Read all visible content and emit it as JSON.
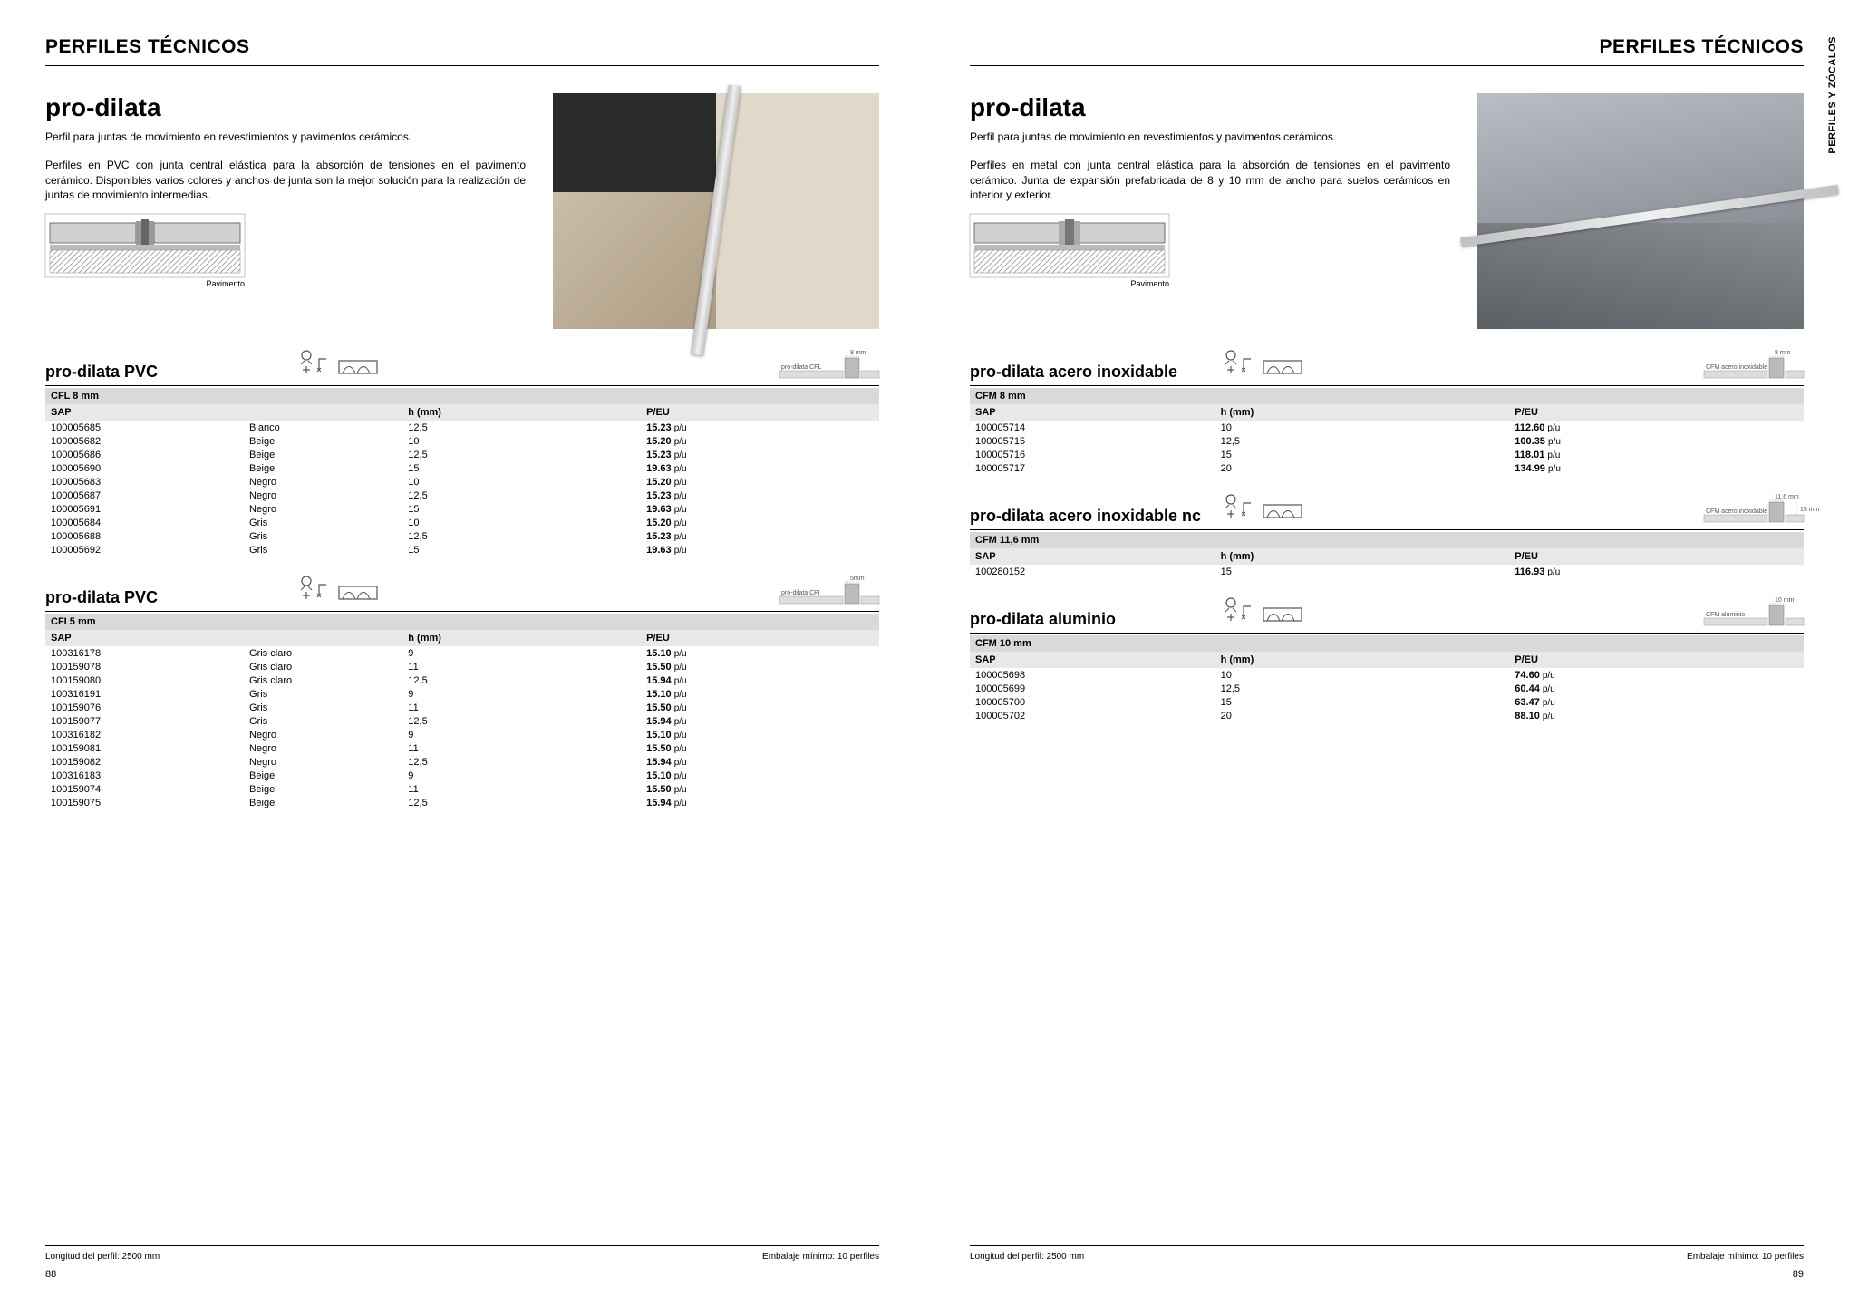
{
  "side_tab": "PERFILES Y ZÓCALOS",
  "header": {
    "left": "PERFILES TÉCNICOS",
    "right": "PERFILES TÉCNICOS"
  },
  "left": {
    "title": "pro-dilata",
    "subtitle": "Perfil para juntas de movimiento en revestimientos y pavimentos cerámicos.",
    "desc": "Perfiles en PVC con junta central elástica para la absorción de tensiones en el pavimento cerámico. Disponibles varios colores y anchos de junta son la mejor solución para la realización de juntas de movimiento intermedias.",
    "diagram_caption": "Pavimento",
    "sections": [
      {
        "title": "pro-dilata PVC",
        "sub": "CFL 8 mm",
        "diag_label": "pro-dilata CFL",
        "diag_dim": "8 mm",
        "cols": [
          "SAP",
          "",
          "h (mm)",
          "P/EU"
        ],
        "rows": [
          [
            "100005685",
            "Blanco",
            "12,5",
            "15.23"
          ],
          [
            "100005682",
            "Beige",
            "10",
            "15.20"
          ],
          [
            "100005686",
            "Beige",
            "12,5",
            "15.23"
          ],
          [
            "100005690",
            "Beige",
            "15",
            "19.63"
          ],
          [
            "100005683",
            "Negro",
            "10",
            "15.20"
          ],
          [
            "100005687",
            "Negro",
            "12,5",
            "15.23"
          ],
          [
            "100005691",
            "Negro",
            "15",
            "19.63"
          ],
          [
            "100005684",
            "Gris",
            "10",
            "15.20"
          ],
          [
            "100005688",
            "Gris",
            "12,5",
            "15.23"
          ],
          [
            "100005692",
            "Gris",
            "15",
            "19.63"
          ]
        ]
      },
      {
        "title": "pro-dilata PVC",
        "sub": "CFI 5 mm",
        "diag_label": "pro-dilata CFI",
        "diag_dim": "5mm",
        "cols": [
          "SAP",
          "",
          "h (mm)",
          "P/EU"
        ],
        "rows": [
          [
            "100316178",
            "Gris claro",
            "9",
            "15.10"
          ],
          [
            "100159078",
            "Gris claro",
            "11",
            "15.50"
          ],
          [
            "100159080",
            "Gris claro",
            "12,5",
            "15.94"
          ],
          [
            "100316191",
            "Gris",
            "9",
            "15.10"
          ],
          [
            "100159076",
            "Gris",
            "11",
            "15.50"
          ],
          [
            "100159077",
            "Gris",
            "12,5",
            "15.94"
          ],
          [
            "100316182",
            "Negro",
            "9",
            "15.10"
          ],
          [
            "100159081",
            "Negro",
            "11",
            "15.50"
          ],
          [
            "100159082",
            "Negro",
            "12,5",
            "15.94"
          ],
          [
            "100316183",
            "Beige",
            "9",
            "15.10"
          ],
          [
            "100159074",
            "Beige",
            "11",
            "15.50"
          ],
          [
            "100159075",
            "Beige",
            "12,5",
            "15.94"
          ]
        ]
      }
    ],
    "footer": {
      "left": "Longitud del perfil: 2500 mm",
      "right": "Embalaje mínimo: 10 perfiles",
      "page": "88"
    }
  },
  "right": {
    "title": "pro-dilata",
    "subtitle": "Perfil para juntas de movimiento en revestimientos y pavimentos cerámicos.",
    "desc": "Perfiles en metal con junta central elástica para la absorción de tensiones en el pavimento cerámico. Junta de expansión prefabricada de 8 y 10 mm de ancho para suelos cerámicos en interior y exterior.",
    "diagram_caption": "Pavimento",
    "sections": [
      {
        "title": "pro-dilata acero inoxidable",
        "sub": "CFM 8 mm",
        "diag_label": "CFM acero inoxidable",
        "diag_dim": "8 mm",
        "cols": [
          "SAP",
          "h (mm)",
          "P/EU"
        ],
        "rows": [
          [
            "100005714",
            "10",
            "112.60"
          ],
          [
            "100005715",
            "12,5",
            "100.35"
          ],
          [
            "100005716",
            "15",
            "118.01"
          ],
          [
            "100005717",
            "20",
            "134.99"
          ]
        ]
      },
      {
        "title": "pro-dilata acero inoxidable nc",
        "sub": "CFM 11,6 mm",
        "diag_label": "CFM acero inoxidable",
        "diag_dim": "11,6 mm",
        "diag_dim2": "15 mm",
        "cols": [
          "SAP",
          "h (mm)",
          "P/EU"
        ],
        "rows": [
          [
            "100280152",
            "15",
            "116.93"
          ]
        ]
      },
      {
        "title": "pro-dilata aluminio",
        "sub": "CFM 10 mm",
        "diag_label": "CFM aluminio",
        "diag_dim": "10 mm",
        "cols": [
          "SAP",
          "h (mm)",
          "P/EU"
        ],
        "rows": [
          [
            "100005698",
            "10",
            "74.60"
          ],
          [
            "100005699",
            "12,5",
            "60.44"
          ],
          [
            "100005700",
            "15",
            "63.47"
          ],
          [
            "100005702",
            "20",
            "88.10"
          ]
        ]
      }
    ],
    "footer": {
      "left": "Longitud del perfil: 2500 mm",
      "right": "Embalaje mínimo: 10 perfiles",
      "page": "89"
    }
  },
  "price_unit": "p/u"
}
